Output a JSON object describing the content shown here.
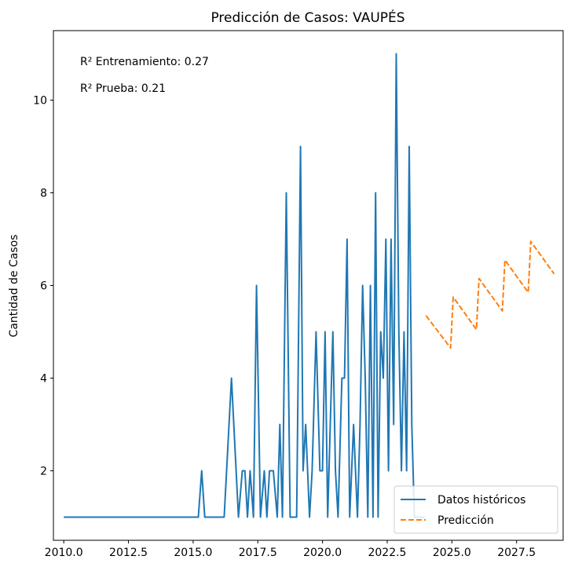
{
  "chart_data": {
    "type": "line",
    "title": "Predicción de Casos: VAUPÉS",
    "xlabel": "",
    "ylabel": "Cantidad de Casos",
    "xlim": [
      2009.6,
      2029.3
    ],
    "ylim": [
      0.5,
      11.5
    ],
    "x_ticks": [
      2010.0,
      2012.5,
      2015.0,
      2017.5,
      2020.0,
      2022.5,
      2025.0,
      2027.5
    ],
    "x_tick_labels": [
      "2010.0",
      "2012.5",
      "2015.0",
      "2017.5",
      "2020.0",
      "2022.5",
      "2025.0",
      "2027.5"
    ],
    "y_ticks": [
      2,
      4,
      6,
      8,
      10
    ],
    "y_tick_labels": [
      "2",
      "4",
      "6",
      "8",
      "10"
    ],
    "grid": false,
    "legend_position": "lower-right",
    "annotations": [
      "R² Entrenamiento: 0.27",
      "R² Prueba: 0.21"
    ],
    "series": [
      {
        "name": "Datos históricos",
        "color": "#1f77b4",
        "style": "solid",
        "x": [
          2010.0,
          2011.0,
          2012.0,
          2013.0,
          2014.0,
          2015.0,
          2015.2,
          2015.33,
          2015.45,
          2015.75,
          2016.0,
          2016.2,
          2016.48,
          2016.75,
          2016.9,
          2017.0,
          2017.1,
          2017.2,
          2017.33,
          2017.45,
          2017.6,
          2017.75,
          2017.85,
          2017.95,
          2018.1,
          2018.25,
          2018.35,
          2018.45,
          2018.6,
          2018.75,
          2019.0,
          2019.15,
          2019.25,
          2019.35,
          2019.5,
          2019.6,
          2019.75,
          2019.9,
          2020.0,
          2020.1,
          2020.2,
          2020.3,
          2020.4,
          2020.5,
          2020.6,
          2020.75,
          2020.85,
          2020.95,
          2021.05,
          2021.2,
          2021.35,
          2021.45,
          2021.55,
          2021.65,
          2021.75,
          2021.85,
          2021.95,
          2022.05,
          2022.15,
          2022.25,
          2022.35,
          2022.45,
          2022.55,
          2022.65,
          2022.75,
          2022.85,
          2022.95,
          2023.05,
          2023.15,
          2023.25,
          2023.35,
          2023.45,
          2023.55,
          2023.65,
          2023.75,
          2023.85,
          2023.95
        ],
        "y": [
          1,
          1,
          1,
          1,
          1,
          1,
          1,
          2,
          1,
          1,
          1,
          1,
          4,
          1,
          2,
          2,
          1,
          2,
          1,
          6,
          1,
          2,
          1,
          2,
          2,
          1,
          3,
          1,
          8,
          1,
          1,
          9,
          2,
          3,
          1,
          2,
          5,
          2,
          2,
          5,
          1,
          3,
          5,
          2,
          1,
          4,
          4,
          7,
          1,
          3,
          1,
          3,
          6,
          4,
          1,
          6,
          1,
          8,
          1,
          5,
          4,
          7,
          2,
          7,
          3,
          11,
          5,
          2,
          5,
          2,
          9,
          3,
          1,
          1,
          1,
          1,
          1
        ]
      },
      {
        "name": "Predicción",
        "color": "#ff7f0e",
        "style": "dashed",
        "x": [
          2024.0,
          2024.95,
          2025.05,
          2025.95,
          2026.05,
          2026.95,
          2027.05,
          2027.95,
          2028.05,
          2028.95
        ],
        "y": [
          5.35,
          4.65,
          5.75,
          5.05,
          6.15,
          5.45,
          6.55,
          5.85,
          6.95,
          6.25
        ]
      }
    ]
  }
}
